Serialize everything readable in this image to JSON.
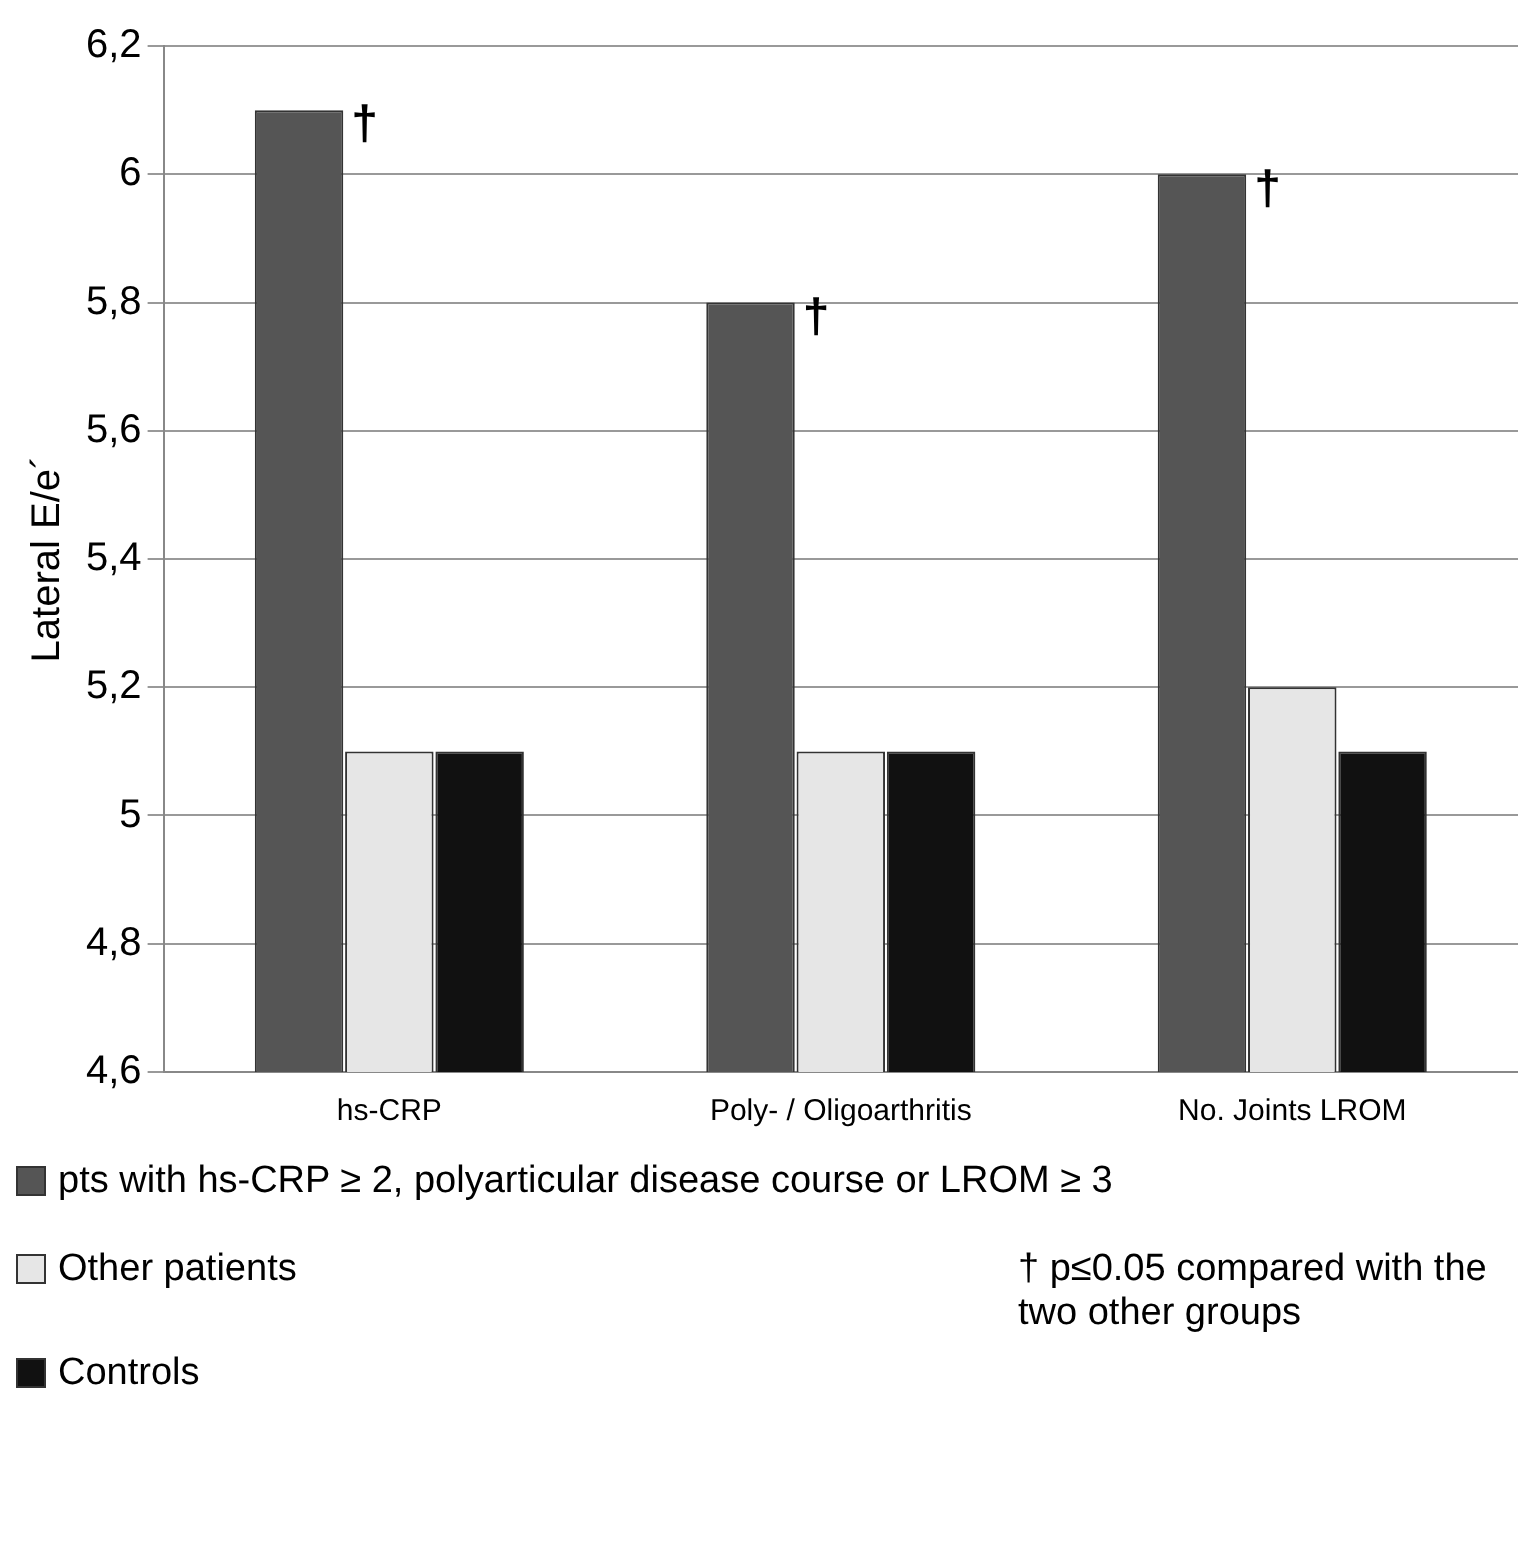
{
  "chart_data": {
    "type": "bar",
    "ylabel": "Lateral E/e´",
    "categories": [
      "hs-CRP",
      "Poly- / Oligoarthritis",
      "No. Joints LROM"
    ],
    "series": [
      {
        "name": "pts with hs-CRP ≥ 2, polyarticular disease course or LROM ≥ 3",
        "color": "#555555",
        "values": [
          6.1,
          5.8,
          6.0
        ]
      },
      {
        "name": "Other patients",
        "color": "#e6e6e6",
        "values": [
          5.1,
          5.1,
          5.2
        ]
      },
      {
        "name": "Controls",
        "color": "#111111",
        "values": [
          5.1,
          5.1,
          5.1
        ]
      }
    ],
    "ylim": [
      4.6,
      6.2
    ],
    "yticks": [
      {
        "value": 4.6,
        "label": "4,6"
      },
      {
        "value": 4.8,
        "label": "4,8"
      },
      {
        "value": 5,
        "label": "5"
      },
      {
        "value": 5.2,
        "label": "5,2"
      },
      {
        "value": 5.4,
        "label": "5,4"
      },
      {
        "value": 5.6,
        "label": "5,6"
      },
      {
        "value": 5.8,
        "label": "5,8"
      },
      {
        "value": 6,
        "label": "6"
      },
      {
        "value": 6.2,
        "label": "6,2"
      }
    ],
    "grid": "y",
    "legend": "bottom",
    "annotations": [
      "†",
      "†",
      "†",
      "† p≤0.05 compared with the two other groups"
    ]
  }
}
